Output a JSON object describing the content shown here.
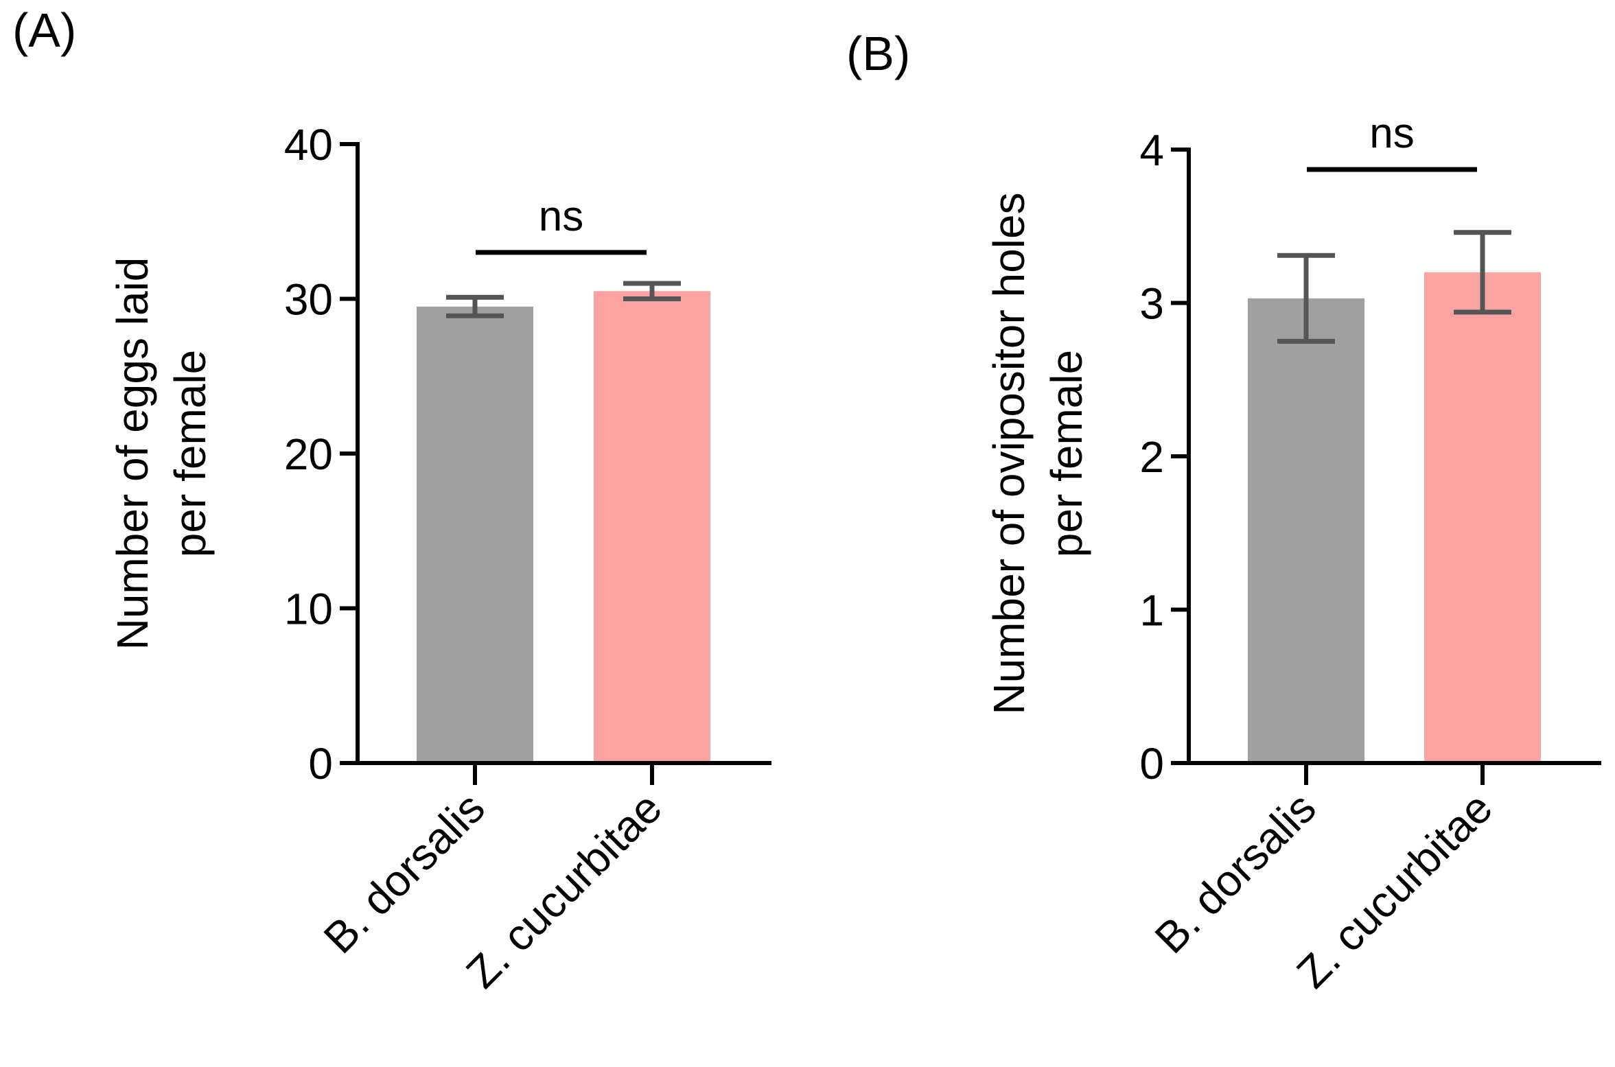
{
  "chart_data": [
    {
      "panel_label": "(A)",
      "type": "bar",
      "categories": [
        "B. dorsalis",
        "Z. cucurbitae"
      ],
      "values": [
        29.5,
        30.5
      ],
      "errors": [
        0.6,
        0.5
      ],
      "colors": [
        "#a0a0a0",
        "#fba2a2"
      ],
      "ylabel_lines": [
        "Number of eggs laid",
        "per female"
      ],
      "ylim": [
        0,
        40
      ],
      "yticks": [
        0,
        10,
        20,
        30,
        40
      ],
      "significance": "ns",
      "significance_y": 33
    },
    {
      "panel_label": "(B)",
      "type": "bar",
      "categories": [
        "B. dorsalis",
        "Z. cucurbitae"
      ],
      "values": [
        3.03,
        3.2
      ],
      "errors": [
        0.28,
        0.26
      ],
      "colors": [
        "#a0a0a0",
        "#fba2a2"
      ],
      "ylabel_lines": [
        "Number of ovipositor holes",
        "per female"
      ],
      "ylim": [
        0,
        4
      ],
      "yticks": [
        0,
        1,
        2,
        3,
        4
      ],
      "significance": "ns",
      "significance_y": 3.87
    }
  ]
}
